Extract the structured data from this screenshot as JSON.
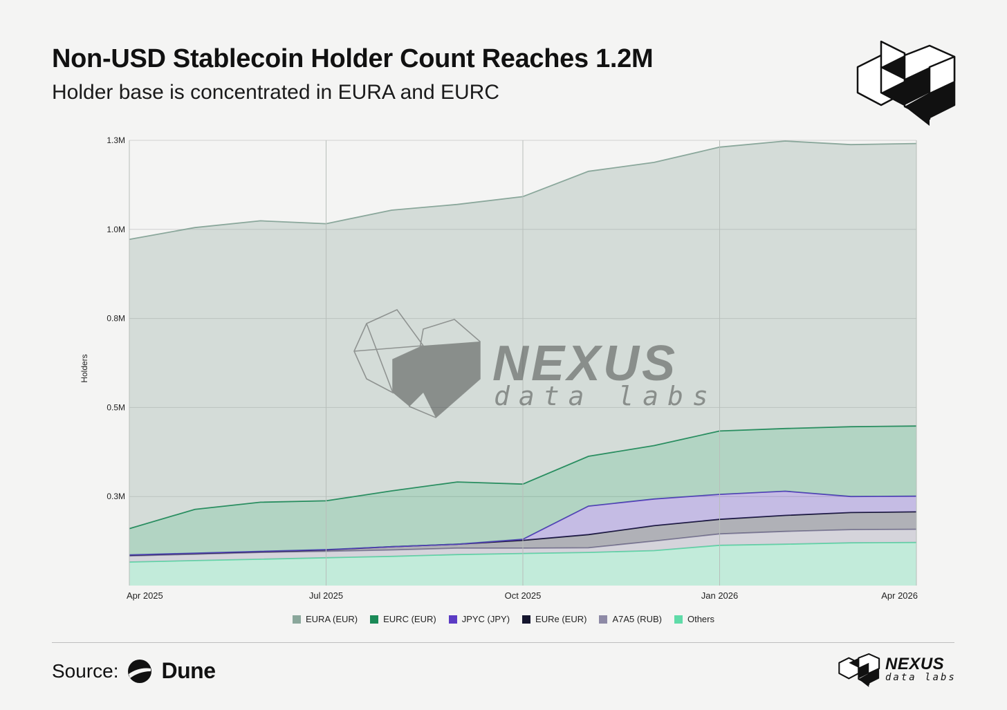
{
  "header": {
    "title": "Non-USD Stablecoin Holder Count Reaches 1.2M",
    "subtitle": "Holder base is concentrated in EURA and EURC"
  },
  "watermark": {
    "name": "NEXUS",
    "sub": "data labs"
  },
  "footer": {
    "source_label": "Source:",
    "source_name": "Dune",
    "brand_name": "NEXUS",
    "brand_sub": "data labs"
  },
  "colors": {
    "EURA": "#8aa79b",
    "EURC": "#1a8a57",
    "JPYC": "#5b3bc4",
    "EURe": "#15162e",
    "A7A5": "#8e8aa6",
    "Others": "#5fdba8"
  },
  "chart_data": {
    "type": "area",
    "stacked": true,
    "ylabel": "Holders",
    "xlabel": "",
    "y_ticks": [
      "0.3M",
      "0.5M",
      "0.8M",
      "1.0M",
      "1.3M"
    ],
    "x_ticks": [
      "Apr 2025",
      "Jul 2025",
      "Oct 2025",
      "Jan 2026",
      "Apr 2026"
    ],
    "x": [
      "2025-04",
      "2025-05",
      "2025-06",
      "2025-07",
      "2025-08",
      "2025-09",
      "2025-10",
      "2025-11",
      "2025-12",
      "2026-01",
      "2026-02",
      "2026-03",
      "2026-04"
    ],
    "ylim": [
      0,
      1250000
    ],
    "grid": true,
    "legend_position": "bottom",
    "series": [
      {
        "name": "Others",
        "values": [
          66000,
          70000,
          74000,
          78000,
          82000,
          87000,
          90000,
          93000,
          98000,
          113000,
          116000,
          120000,
          121000
        ]
      },
      {
        "name": "A7A5 (RUB)",
        "values": [
          17000,
          18000,
          19000,
          18000,
          18000,
          18000,
          15000,
          13000,
          27000,
          32000,
          36000,
          37000,
          37000
        ]
      },
      {
        "name": "EURe (EUR)",
        "values": [
          2000,
          2000,
          2000,
          4000,
          9000,
          11000,
          22000,
          37000,
          43000,
          41000,
          45000,
          48000,
          49000
        ]
      },
      {
        "name": "JPYC (JPY)",
        "values": [
          1000,
          1000,
          1000,
          1000,
          0,
          0,
          3000,
          80000,
          75000,
          70000,
          68000,
          45000,
          44000
        ]
      },
      {
        "name": "EURC (EUR)",
        "values": [
          74000,
          123000,
          138000,
          137000,
          157000,
          175000,
          155000,
          140000,
          150000,
          178000,
          176000,
          196000,
          197000
        ]
      },
      {
        "name": "EURA (EUR)",
        "values": [
          812000,
          791000,
          790000,
          778000,
          788000,
          779000,
          807000,
          800000,
          795000,
          797000,
          807000,
          792000,
          793000
        ]
      }
    ]
  }
}
